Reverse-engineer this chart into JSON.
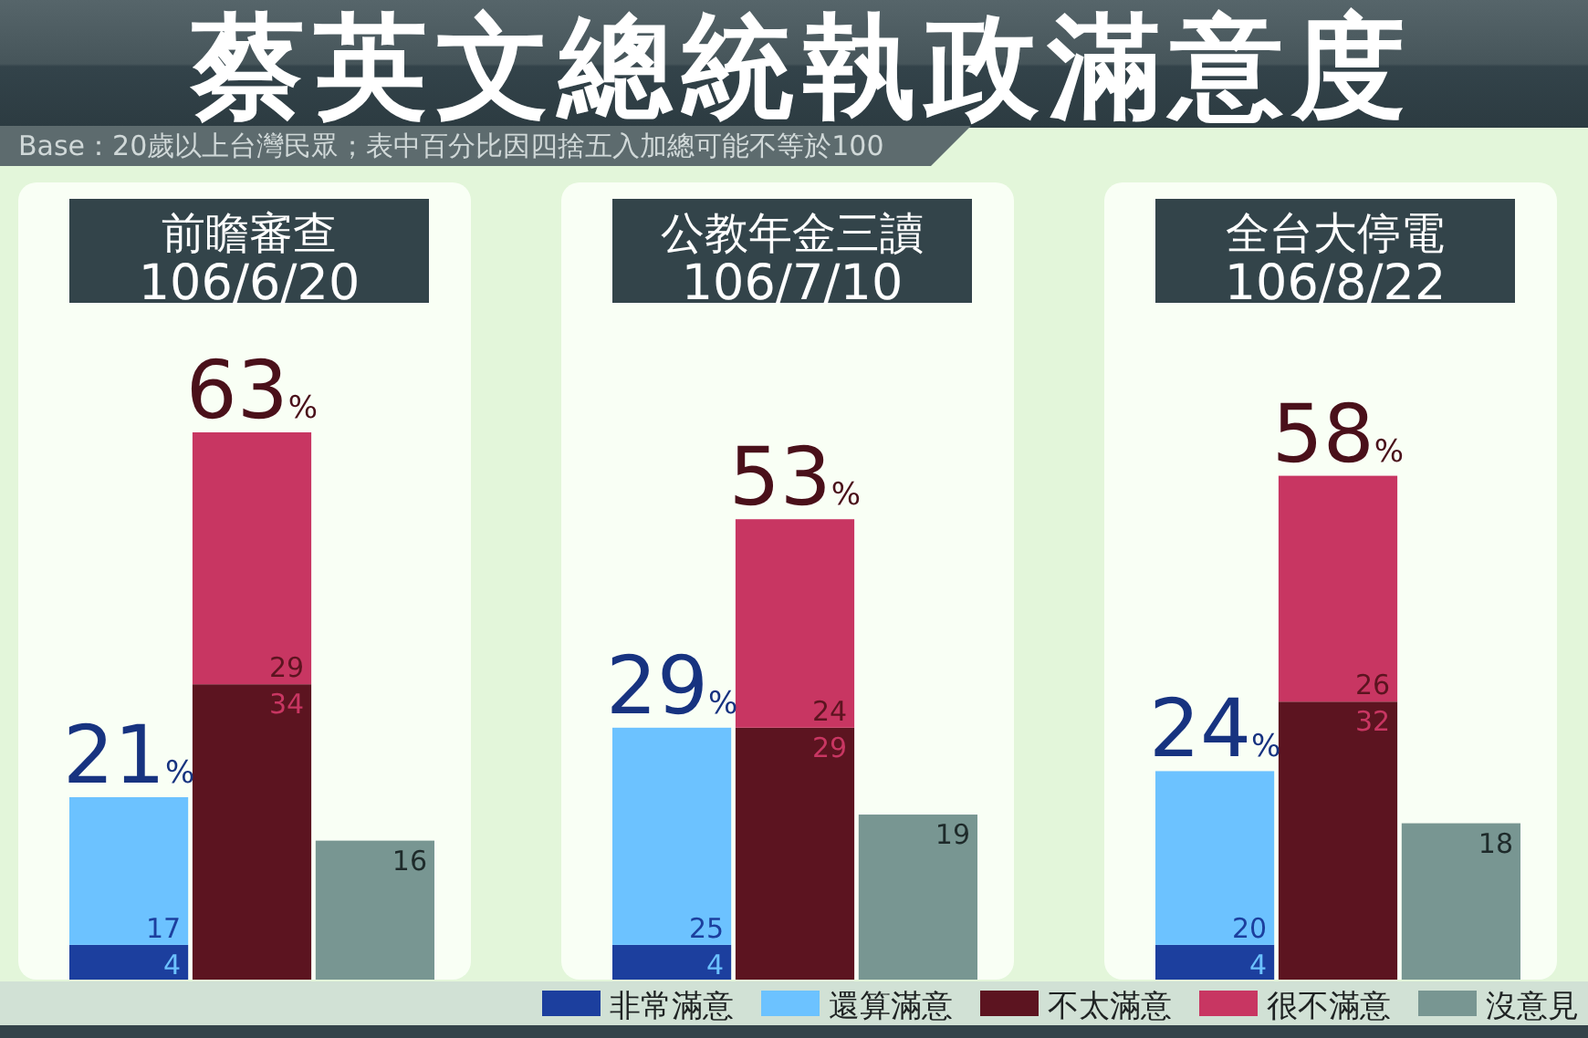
{
  "chart_data": [
    {
      "type": "other",
      "title": "蔡英文總統執政滿意度",
      "subtitle": "Base：20歲以上台灣民眾；表中百分比因四捨五入加總可能不等於100"
    },
    {
      "type": "bar",
      "stacked": true,
      "title": "前瞻審查",
      "subtitle": "106/6/20",
      "categories": [
        null,
        null,
        null
      ],
      "series": [
        {
          "color": "#1c3f9e",
          "values": [
            4,
            null,
            null
          ]
        },
        {
          "color": "#6cc2ff",
          "values": [
            17,
            null,
            null
          ]
        },
        {
          "color": "#5c1420",
          "values": [
            null,
            34,
            null
          ]
        },
        {
          "color": "#c83662",
          "values": [
            null,
            29,
            null
          ]
        },
        {
          "color": "#789692",
          "values": [
            null,
            null,
            16
          ]
        }
      ],
      "data_labels": true,
      "totals": [
        "21%",
        "63%",
        null
      ]
    },
    {
      "type": "bar",
      "stacked": true,
      "title": "公教年金三讀",
      "subtitle": "106/7/10",
      "categories": [
        null,
        null,
        null
      ],
      "series": [
        {
          "color": "#1c3f9e",
          "values": [
            4,
            null,
            null
          ]
        },
        {
          "color": "#6cc2ff",
          "values": [
            25,
            null,
            null
          ]
        },
        {
          "color": "#5c1420",
          "values": [
            null,
            29,
            null
          ]
        },
        {
          "color": "#c83662",
          "values": [
            null,
            24,
            null
          ]
        },
        {
          "color": "#789692",
          "values": [
            null,
            null,
            19
          ]
        }
      ],
      "data_labels": true,
      "totals": [
        "29%",
        "53%",
        null
      ]
    },
    {
      "type": "bar",
      "stacked": true,
      "title": "全台大停電",
      "subtitle": "106/8/22",
      "categories": [
        null,
        null,
        null
      ],
      "series": [
        {
          "name": "非常滿意",
          "color": "#1c3f9e",
          "values": [
            4,
            null,
            null
          ]
        },
        {
          "name": "還算滿意",
          "color": "#6cc2ff",
          "values": [
            20,
            null,
            null
          ]
        },
        {
          "name": "不太滿意",
          "color": "#5c1420",
          "values": [
            null,
            32,
            null
          ]
        },
        {
          "name": "很不滿意",
          "color": "#c83662",
          "values": [
            null,
            26,
            null
          ]
        },
        {
          "name": "沒意見",
          "color": "#789692",
          "values": [
            null,
            null,
            18
          ]
        }
      ],
      "data_labels": true,
      "totals": [
        "24%",
        "58%",
        null
      ],
      "legend": "bottom"
    }
  ]
}
